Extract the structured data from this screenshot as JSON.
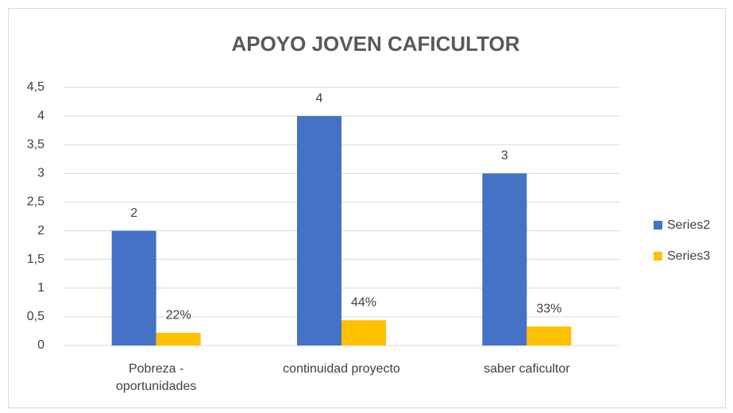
{
  "chart_data": {
    "type": "bar",
    "title": "APOYO JOVEN CAFICULTOR",
    "categories": [
      "Pobreza - oportunidades",
      "continuidad proyecto",
      "saber caficultor"
    ],
    "series": [
      {
        "name": "Series2",
        "color": "#4472c4",
        "values": [
          2,
          4,
          3
        ]
      },
      {
        "name": "Series3",
        "color": "#ffc000",
        "values": [
          0.22,
          0.44,
          0.33
        ],
        "value_labels": [
          "22%",
          "44%",
          "33%"
        ]
      }
    ],
    "ylim": [
      0,
      4.5
    ],
    "yticks": [
      0,
      {
        "value": 0.5,
        "label": "0,5"
      },
      1,
      {
        "value": 1.5,
        "label": "1,5"
      },
      2,
      {
        "value": 2.5,
        "label": "2,5"
      },
      3,
      {
        "value": 3.5,
        "label": "3,5"
      },
      4,
      {
        "value": 4.5,
        "label": "4,5"
      }
    ],
    "grid": true,
    "legend": "right"
  }
}
